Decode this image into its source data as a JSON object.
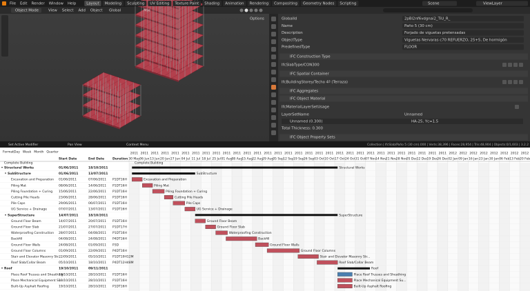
{
  "menu": [
    "File",
    "Edit",
    "Render",
    "Window",
    "Help"
  ],
  "workspaces": [
    "Layout",
    "Modeling",
    "Sculpting",
    "UV Editing",
    "Texture Paint",
    "Shading",
    "Animation",
    "Rendering",
    "Compositing",
    "Geometry Nodes",
    "Scripting"
  ],
  "scene": "Scene",
  "view_layer": "ViewLayer",
  "viewport_header": {
    "mode": "Object Mode",
    "menus": [
      "View",
      "Select",
      "Add",
      "Object"
    ],
    "orientation": "Global",
    "shading": "Mix",
    "options": "Options"
  },
  "properties": {
    "attributes": [
      {
        "label": "GlobalId",
        "value": "2pBl2nf6vdgnai2_TiU_R_"
      },
      {
        "label": "Name",
        "value": "Paño 5 (30 cm)"
      },
      {
        "label": "Description",
        "value": "Forjado de viguetas pretensadas"
      },
      {
        "label": "ObjectType",
        "value": "Viguetas Nervaras c70 REFUERZO, 25+5, De hormigón"
      },
      {
        "label": "PredefinedType",
        "value": "FLOOR"
      }
    ],
    "construction_type": {
      "title": "IFC Construction Type",
      "value": "IfcSlabType/CON300"
    },
    "spatial_container": {
      "title": "IFC Spatial Container",
      "value": "IfcBuildingStorey/Techo 4ª (Terraza)"
    },
    "aggregates": {
      "title": "IFC Aggregates"
    },
    "object_material": {
      "title": "IFC Object Material",
      "usage": "IfcMaterialLayerSetUsage",
      "layer_set_name": {
        "label": "LayerSetName",
        "value": "Unnamed"
      },
      "layer": {
        "name": "Unnamed (0.300)",
        "material": "HA-25, Yc=1.5"
      },
      "total_thickness": "Total Thickness: 0.300"
    },
    "property_sets": {
      "title": "IFC Object Property Sets"
    }
  },
  "status": {
    "left": [
      "Set Active Modifier",
      "Pan View",
      "Context Menu"
    ],
    "stats": "Collection | IfcSlab/Paño 5 (30 cm).000 | Verts:38,396 | Faces:28,954 | Tris:48,904 | Objects:0/1,603 | 3.2.2"
  },
  "gantt": {
    "format_label": "Format:",
    "formats": [
      "Day",
      "Week",
      "Month",
      "Quarter"
    ],
    "columns": [
      "Start Date",
      "End Date",
      "Duration"
    ],
    "partial_row": "Complete Building",
    "timeline": [
      {
        "year": "2011",
        "label": "30 May"
      },
      {
        "year": "2011",
        "label": "06 Jun"
      },
      {
        "year": "2011",
        "label": "13 Jun"
      },
      {
        "year": "2011",
        "label": "20 Jun"
      },
      {
        "year": "2011",
        "label": "27 Jun"
      },
      {
        "year": "2011",
        "label": "04 Jul"
      },
      {
        "year": "2011",
        "label": "11 Jul"
      },
      {
        "year": "2011",
        "label": "18 Jul"
      },
      {
        "year": "2011",
        "label": "25 Jul"
      },
      {
        "year": "2011",
        "label": "01 Aug"
      },
      {
        "year": "2011",
        "label": "08 Aug"
      },
      {
        "year": "2011",
        "label": "15 Aug"
      },
      {
        "year": "2011",
        "label": "22 Aug"
      },
      {
        "year": "2011",
        "label": "29 Aug"
      },
      {
        "year": "2011",
        "label": "05 Sep"
      },
      {
        "year": "2011",
        "label": "12 Sep"
      },
      {
        "year": "2011",
        "label": "19 Sep"
      },
      {
        "year": "2011",
        "label": "26 Sep"
      },
      {
        "year": "2011",
        "label": "03 Oct"
      },
      {
        "year": "2011",
        "label": "10 Oct"
      },
      {
        "year": "2011",
        "label": "17 Oct"
      },
      {
        "year": "2011",
        "label": "24 Oct"
      },
      {
        "year": "2011",
        "label": "31 Oct"
      },
      {
        "year": "2011",
        "label": "07 Nov"
      },
      {
        "year": "2011",
        "label": "14 Nov"
      },
      {
        "year": "2011",
        "label": "21 Nov"
      },
      {
        "year": "2011",
        "label": "28 Nov"
      },
      {
        "year": "2011",
        "label": "05 Dec"
      },
      {
        "year": "2011",
        "label": "12 Dec"
      },
      {
        "year": "2011",
        "label": "19 Dec"
      },
      {
        "year": "2011",
        "label": "26 Dec"
      },
      {
        "year": "2012",
        "label": "02 Jan"
      },
      {
        "year": "2012",
        "label": "09 Jan"
      },
      {
        "year": "2012",
        "label": "16 Jan"
      },
      {
        "year": "2012",
        "label": "23 Jan"
      },
      {
        "year": "2012",
        "label": "30 Jan"
      },
      {
        "year": "2012",
        "label": "06 Feb"
      },
      {
        "year": "2012",
        "label": "13 Feb"
      },
      {
        "year": "2012",
        "label": "20 Feb"
      }
    ],
    "tasks": [
      {
        "name": "Structural Works",
        "start": "01/06/2011",
        "end": "18/10/2011",
        "level": 0,
        "color": "#111111"
      },
      {
        "name": "SubStructure",
        "start": "01/06/2011",
        "end": "13/07/2011",
        "level": 1,
        "color": "#111111"
      },
      {
        "name": "Excavation and Preparation",
        "start": "01/06/2011",
        "end": "07/06/2011",
        "duration": "P1DT16H",
        "level": 2,
        "color": "#c0505c"
      },
      {
        "name": "Piling Mat",
        "start": "08/06/2011",
        "end": "14/06/2011",
        "duration": "P1DT16H",
        "level": 2,
        "color": "#c0505c"
      },
      {
        "name": "Piling Foundation + Curing",
        "start": "15/06/2011",
        "end": "22/06/2011",
        "duration": "P1DT16H",
        "level": 2,
        "color": "#c0505c"
      },
      {
        "name": "Cutting Pile Heads",
        "start": "23/06/2011",
        "end": "28/06/2011",
        "duration": "P1DT16H",
        "level": 2,
        "color": "#c0505c"
      },
      {
        "name": "Pile Caps",
        "start": "29/06/2011",
        "end": "06/07/2011",
        "duration": "P1DT16H",
        "level": 2,
        "color": "#c0505c"
      },
      {
        "name": "UG Service + Drainage",
        "start": "07/07/2011",
        "end": "13/07/2011",
        "duration": "P1DT16H",
        "level": 2,
        "color": "#c0505c"
      },
      {
        "name": "SuperStructure",
        "start": "14/07/2011",
        "end": "18/10/2011",
        "level": 1,
        "color": "#111111"
      },
      {
        "name": "Ground Floor Beam",
        "start": "14/07/2011",
        "end": "20/07/2011",
        "duration": "P1DT16H",
        "level": 2,
        "color": "#c0505c"
      },
      {
        "name": "Ground Floor Slab",
        "start": "21/07/2011",
        "end": "27/07/2011",
        "duration": "P1DT17H",
        "level": 2,
        "color": "#c0505c"
      },
      {
        "name": "Waterproofing Construction",
        "start": "28/07/2011",
        "end": "04/08/2011",
        "duration": "P1DT16H",
        "level": 2,
        "color": "#c0505c"
      },
      {
        "name": "Backfill",
        "start": "04/08/2011",
        "end": "24/08/2011",
        "duration": "P4DT16H",
        "level": 2,
        "color": "#c0505c"
      },
      {
        "name": "Ground Floor Walls",
        "start": "24/08/2011",
        "end": "01/09/2011",
        "duration": "P3D",
        "level": 2,
        "color": "#c0505c"
      },
      {
        "name": "Ground Floor Columns",
        "start": "01/09/2011",
        "end": "22/09/2011",
        "duration": "P4DT16H",
        "level": 2,
        "color": "#c0505c"
      },
      {
        "name": "Stair and Elevator Masonry Str...",
        "start": "22/09/2011",
        "end": "05/10/2011",
        "duration": "P1DT19H12M",
        "level": 2,
        "color": "#c0505c"
      },
      {
        "name": "Roof Slab/Collar Beam",
        "start": "05/10/2011",
        "end": "18/10/2011",
        "duration": "P4DT12H48M",
        "level": 2,
        "color": "#c0505c"
      },
      {
        "name": "Roof",
        "start": "19/10/2011",
        "end": "09/11/2011",
        "level": 0,
        "color": "#111111"
      },
      {
        "name": "Place Roof Trusses and Sheathing",
        "start": "19/10/2011",
        "end": "28/10/2011",
        "duration": "P1DT16H",
        "level": 2,
        "color": "#4a7fb0"
      },
      {
        "name": "Place Mechanical Equipment Su...",
        "start": "19/10/2011",
        "end": "28/10/2011",
        "duration": "P1DT16H",
        "level": 2,
        "color": "#c0505c"
      },
      {
        "name": "Built-Up Asphalt Roofing",
        "start": "19/10/2011",
        "end": "28/10/2011",
        "duration": "P1DT16H",
        "level": 2,
        "color": "#c0505c"
      }
    ]
  }
}
